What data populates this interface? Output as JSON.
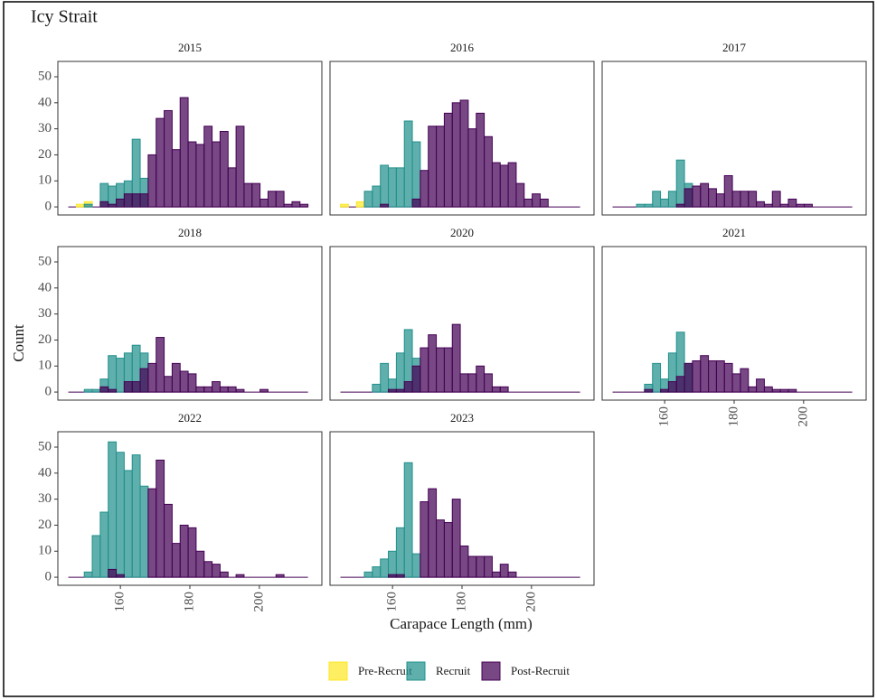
{
  "chart_data": {
    "type": "histogram",
    "title": "Icy Strait",
    "x_label": "Carapace Length (mm)",
    "y_label": "Count",
    "bins": [
      145,
      147.3,
      149.6,
      151.9,
      154.2,
      156.5,
      158.8,
      161.1,
      163.4,
      165.7,
      168,
      170.3,
      172.6,
      174.9,
      177.2,
      179.5,
      181.8,
      184.1,
      186.4,
      188.7,
      191,
      193.3,
      195.6,
      197.9,
      200.2,
      202.5,
      204.8,
      207.1,
      209.4,
      211.7,
      214
    ],
    "xlim": [
      142,
      218
    ],
    "ylim": [
      -3.1,
      55.9
    ],
    "xticks": [
      160,
      180,
      200
    ],
    "yticks": [
      0,
      10,
      20,
      30,
      40,
      50
    ],
    "series": [
      {
        "name": "Pre-Recruit",
        "color": "#FDE725"
      },
      {
        "name": "Recruit",
        "color": "#21908C"
      },
      {
        "name": "Post-Recruit",
        "color": "#440154"
      }
    ],
    "panels": [
      {
        "title": "2015",
        "counts": [
          [
            0,
            1,
            2,
            0,
            0,
            0,
            0,
            0,
            0,
            0,
            0,
            0,
            0,
            0,
            0,
            0,
            0,
            0,
            0,
            0,
            0,
            0,
            0,
            0,
            0,
            0,
            0,
            0,
            0,
            0
          ],
          [
            0,
            0,
            1,
            0,
            9,
            8,
            9,
            10,
            26,
            11,
            0,
            0,
            0,
            0,
            0,
            0,
            0,
            0,
            0,
            0,
            0,
            0,
            0,
            0,
            0,
            0,
            0,
            0,
            0,
            0
          ],
          [
            0,
            0,
            0,
            0,
            2,
            1,
            3,
            5,
            5,
            5,
            20,
            34,
            37,
            22,
            42,
            25,
            24,
            31,
            25,
            29,
            15,
            31,
            9,
            9,
            3,
            6,
            6,
            1,
            2,
            1
          ]
        ]
      },
      {
        "title": "2016",
        "counts": [
          [
            1,
            0,
            2,
            0,
            0,
            0,
            0,
            0,
            0,
            0,
            0,
            0,
            0,
            0,
            0,
            0,
            0,
            0,
            0,
            0,
            0,
            0,
            0,
            0,
            0,
            0,
            0,
            0,
            0,
            0
          ],
          [
            0,
            0,
            0,
            6,
            8,
            16,
            15,
            15,
            33,
            25,
            0,
            0,
            0,
            0,
            0,
            0,
            0,
            0,
            0,
            0,
            0,
            0,
            0,
            0,
            0,
            0,
            0,
            0,
            0,
            0
          ],
          [
            0,
            0,
            0,
            0,
            0,
            1,
            0,
            0,
            0,
            3,
            14,
            31,
            31,
            36,
            40,
            41,
            30,
            36,
            27,
            17,
            16,
            17,
            9,
            3,
            5,
            3,
            0,
            0,
            0,
            0
          ]
        ]
      },
      {
        "title": "2017",
        "counts": [
          [
            0,
            0,
            0,
            0,
            0,
            0,
            0,
            0,
            0,
            0,
            0,
            0,
            0,
            0,
            0,
            0,
            0,
            0,
            0,
            0,
            0,
            0,
            0,
            0,
            0,
            0,
            0,
            0,
            0,
            0
          ],
          [
            0,
            0,
            0,
            1,
            1,
            6,
            3,
            6,
            18,
            9,
            0,
            0,
            0,
            0,
            0,
            0,
            0,
            0,
            0,
            0,
            0,
            0,
            0,
            0,
            0,
            0,
            0,
            0,
            0,
            0
          ],
          [
            0,
            0,
            0,
            0,
            0,
            0,
            0,
            0,
            1,
            7,
            8,
            9,
            7,
            5,
            12,
            6,
            6,
            6,
            2,
            1,
            6,
            1,
            3,
            1,
            1,
            0,
            0,
            0,
            0,
            0
          ]
        ]
      },
      {
        "title": "2018",
        "counts": [
          [
            0,
            0,
            0,
            0,
            0,
            0,
            0,
            0,
            0,
            0,
            0,
            0,
            0,
            0,
            0,
            0,
            0,
            0,
            0,
            0,
            0,
            0,
            0,
            0,
            0,
            0,
            0,
            0,
            0,
            0
          ],
          [
            0,
            0,
            1,
            1,
            5,
            14,
            13,
            15,
            18,
            15,
            0,
            0,
            0,
            0,
            0,
            0,
            0,
            0,
            0,
            0,
            0,
            0,
            0,
            0,
            0,
            0,
            0,
            0,
            0,
            0
          ],
          [
            0,
            0,
            0,
            0,
            2,
            1,
            0,
            4,
            4,
            9,
            11,
            21,
            6,
            11,
            8,
            7,
            2,
            2,
            4,
            2,
            2,
            1,
            0,
            0,
            1,
            0,
            0,
            0,
            0,
            0
          ]
        ]
      },
      {
        "title": "2020",
        "counts": [
          [
            0,
            0,
            0,
            0,
            0,
            0,
            0,
            0,
            0,
            0,
            0,
            0,
            0,
            0,
            0,
            0,
            0,
            0,
            0,
            0,
            0,
            0,
            0,
            0,
            0,
            0,
            0,
            0,
            0,
            0
          ],
          [
            0,
            0,
            0,
            0,
            3,
            11,
            5,
            15,
            24,
            13,
            0,
            0,
            0,
            0,
            0,
            0,
            0,
            0,
            0,
            0,
            0,
            0,
            0,
            0,
            0,
            0,
            0,
            0,
            0,
            0
          ],
          [
            0,
            0,
            0,
            0,
            0,
            0,
            1,
            1,
            4,
            10,
            17,
            22,
            17,
            17,
            26,
            7,
            7,
            10,
            7,
            2,
            2,
            0,
            0,
            0,
            0,
            0,
            0,
            0,
            0,
            0
          ]
        ]
      },
      {
        "title": "2021",
        "counts": [
          [
            0,
            0,
            0,
            0,
            0,
            0,
            0,
            0,
            0,
            0,
            0,
            0,
            0,
            0,
            0,
            0,
            0,
            0,
            0,
            0,
            0,
            0,
            0,
            0,
            0,
            0,
            0,
            0,
            0,
            0
          ],
          [
            0,
            0,
            0,
            0,
            3,
            11,
            5,
            15,
            23,
            11,
            0,
            0,
            0,
            0,
            0,
            0,
            0,
            0,
            0,
            0,
            0,
            0,
            0,
            0,
            0,
            0,
            0,
            0,
            0,
            0
          ],
          [
            0,
            0,
            0,
            0,
            1,
            0,
            1,
            4,
            6,
            11,
            12,
            14,
            12,
            12,
            11,
            7,
            9,
            2,
            5,
            2,
            1,
            1,
            1,
            0,
            0,
            0,
            0,
            0,
            0,
            0
          ]
        ]
      },
      {
        "title": "2022",
        "counts": [
          [
            0,
            0,
            0,
            0,
            0,
            0,
            0,
            0,
            0,
            0,
            0,
            0,
            0,
            0,
            0,
            0,
            0,
            0,
            0,
            0,
            0,
            0,
            0,
            0,
            0,
            0,
            0,
            0,
            0,
            0
          ],
          [
            0,
            0,
            2,
            16,
            25,
            52,
            48,
            41,
            47,
            35,
            0,
            0,
            0,
            0,
            0,
            0,
            0,
            0,
            0,
            0,
            0,
            0,
            0,
            0,
            0,
            0,
            0,
            0,
            0,
            0
          ],
          [
            0,
            0,
            0,
            0,
            0,
            3,
            1,
            0,
            0,
            0,
            34,
            45,
            28,
            13,
            20,
            19,
            10,
            6,
            5,
            2,
            0,
            1,
            0,
            0,
            0,
            0,
            1,
            0,
            0,
            0
          ]
        ]
      },
      {
        "title": "2023",
        "counts": [
          [
            0,
            0,
            0,
            0,
            0,
            0,
            0,
            0,
            0,
            0,
            0,
            0,
            0,
            0,
            0,
            0,
            0,
            0,
            0,
            0,
            0,
            0,
            0,
            0,
            0,
            0,
            0,
            0,
            0,
            0
          ],
          [
            0,
            0,
            0,
            2,
            4,
            7,
            10,
            19,
            44,
            9,
            0,
            0,
            0,
            0,
            0,
            0,
            0,
            0,
            0,
            0,
            0,
            0,
            0,
            0,
            0,
            0,
            0,
            0,
            0,
            0
          ],
          [
            0,
            0,
            0,
            0,
            0,
            0,
            1,
            1,
            0,
            0,
            29,
            34,
            22,
            21,
            30,
            12,
            8,
            8,
            8,
            2,
            5,
            2,
            0,
            0,
            0,
            0,
            0,
            0,
            0,
            0
          ]
        ]
      }
    ]
  }
}
